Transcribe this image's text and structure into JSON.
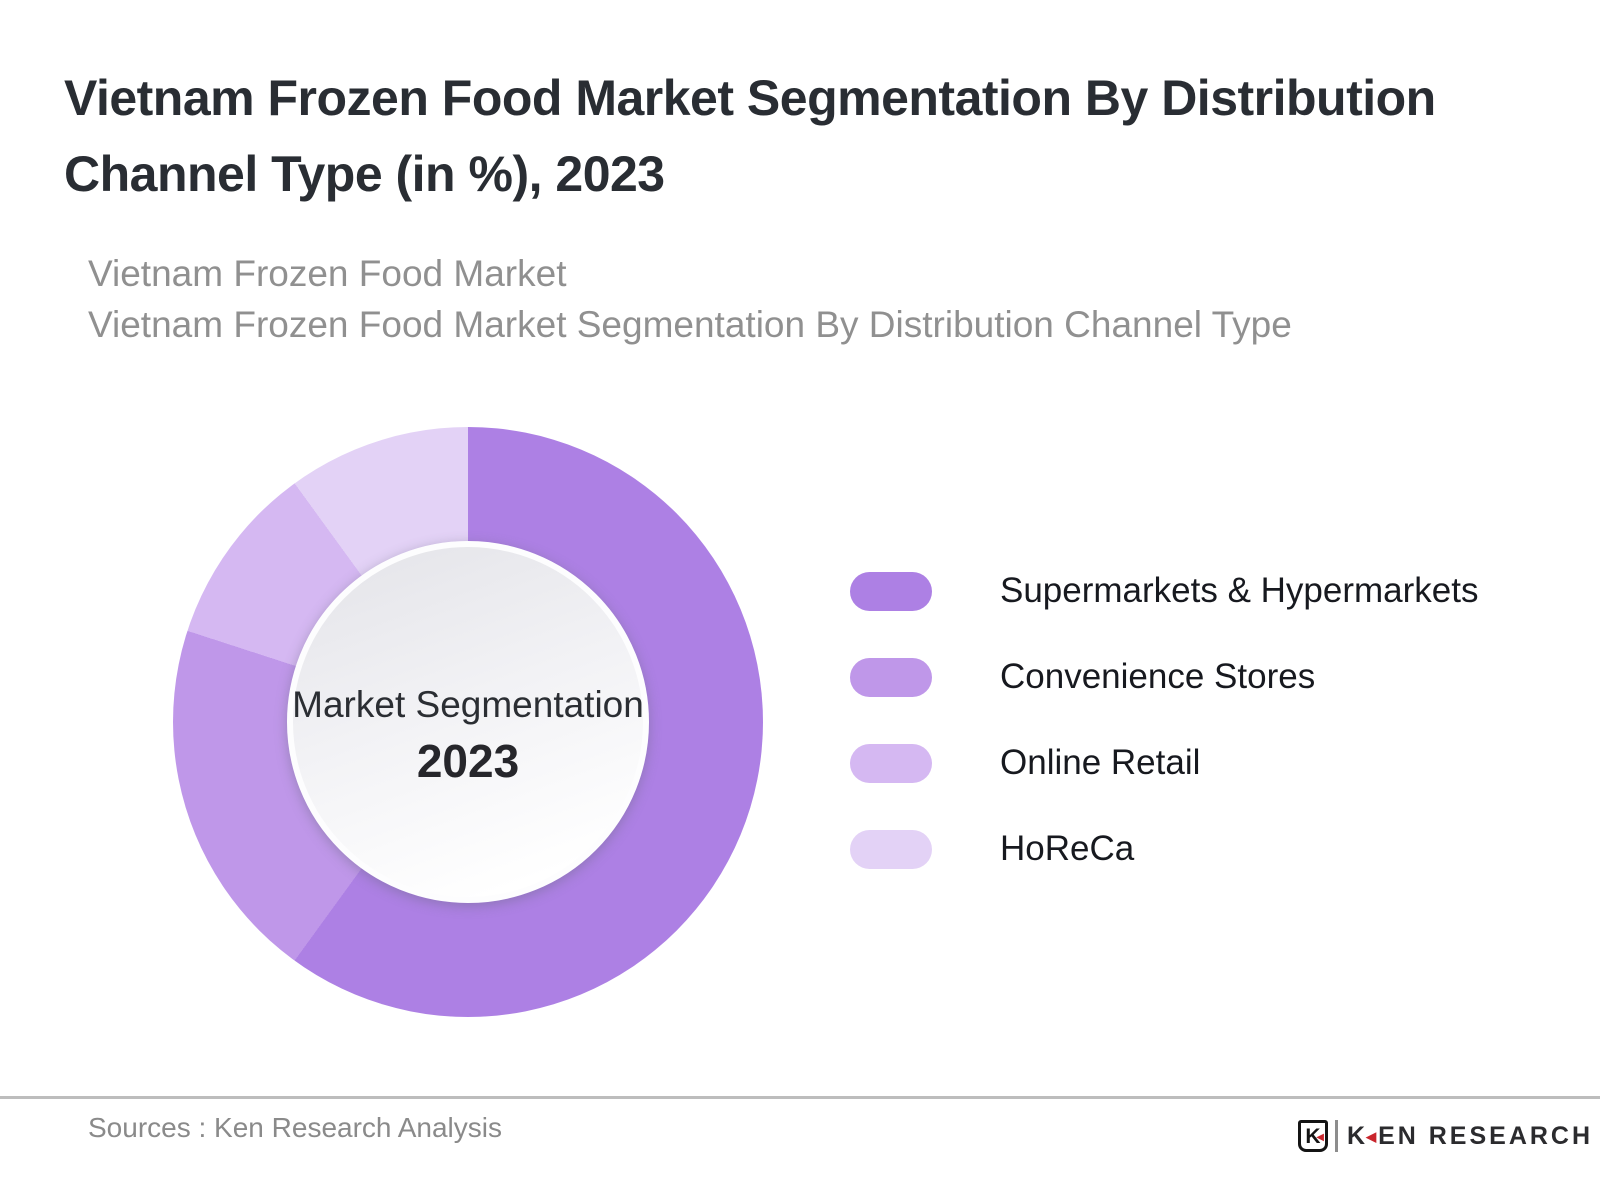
{
  "header": {
    "title_lines": [
      "Vietnam Frozen Food Market Segmentation By Distribution",
      "Channel Type (in %), 2023"
    ],
    "subtitle_lines": [
      "Vietnam Frozen Food Market",
      "Vietnam Frozen Food Market Segmentation By Distribution Channel Type"
    ]
  },
  "chart_data": {
    "type": "pie",
    "subtype": "donut",
    "title": "Vietnam Frozen Food Market Segmentation By Distribution Channel Type (in %), 2023",
    "unit": "%",
    "categories": [
      "Supermarkets & Hypermarkets",
      "Convenience Stores",
      "Online Retail",
      "HoReCa"
    ],
    "values": [
      60,
      20,
      10,
      10
    ],
    "colors": [
      "#ad80e4",
      "#bf97e9",
      "#d5b8f2",
      "#e3d2f6"
    ],
    "start_angle_deg": 0,
    "direction": "clockwise",
    "center_label": "Market Segmentation",
    "center_sublabel": "2023",
    "legend_position": "right"
  },
  "legend": {
    "items": [
      {
        "label": "Supermarkets & Hypermarkets",
        "color": "#ad80e4"
      },
      {
        "label": "Convenience Stores",
        "color": "#bf97e9"
      },
      {
        "label": "Online Retail",
        "color": "#d5b8f2"
      },
      {
        "label": "HoReCa",
        "color": "#e3d2f6"
      }
    ]
  },
  "footer": {
    "sources": "Sources : Ken Research Analysis",
    "logo": {
      "badge_letter": "K",
      "wordmark_first_letter": "K",
      "wordmark_rest": "EN RESEARCH",
      "accent_color": "#c9252c"
    }
  }
}
